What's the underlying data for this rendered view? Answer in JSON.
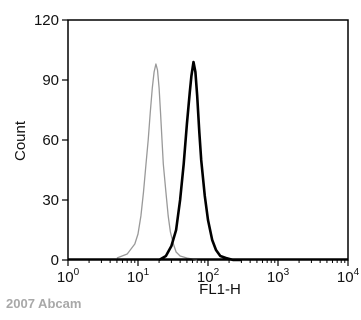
{
  "watermark": "2007 Abcam",
  "chart_data": {
    "type": "line",
    "title": "",
    "xlabel": "FL1-H",
    "ylabel": "Count",
    "x_scale": "log",
    "xlim": [
      1,
      10000
    ],
    "ylim": [
      0,
      120
    ],
    "grid": false,
    "x_ticks": [
      {
        "base": "10",
        "exp": "0"
      },
      {
        "base": "10",
        "exp": "1"
      },
      {
        "base": "10",
        "exp": "2"
      },
      {
        "base": "10",
        "exp": "3"
      },
      {
        "base": "10",
        "exp": "4"
      }
    ],
    "y_ticks": [
      "0",
      "30",
      "60",
      "90",
      "120"
    ],
    "series": [
      {
        "color": "#999999",
        "x": [
          5,
          7,
          9,
          10,
          11,
          12,
          13,
          14,
          15,
          16,
          17,
          18,
          19,
          20,
          21,
          22,
          23,
          25,
          27,
          29,
          32,
          35,
          40,
          50,
          70
        ],
        "y": [
          1,
          3,
          8,
          13,
          22,
          34,
          48,
          60,
          74,
          86,
          94,
          98,
          95,
          86,
          73,
          60,
          48,
          34,
          22,
          14,
          8,
          4,
          2,
          1,
          0
        ]
      },
      {
        "color": "#000000",
        "x": [
          20,
          25,
          30,
          35,
          40,
          45,
          50,
          55,
          58,
          62,
          66,
          70,
          75,
          80,
          90,
          100,
          115,
          130,
          150,
          180,
          230,
          300
        ],
        "y": [
          0,
          2,
          7,
          15,
          30,
          48,
          68,
          84,
          92,
          99,
          94,
          82,
          64,
          50,
          32,
          20,
          10,
          5,
          2,
          1,
          0,
          0
        ]
      }
    ]
  }
}
